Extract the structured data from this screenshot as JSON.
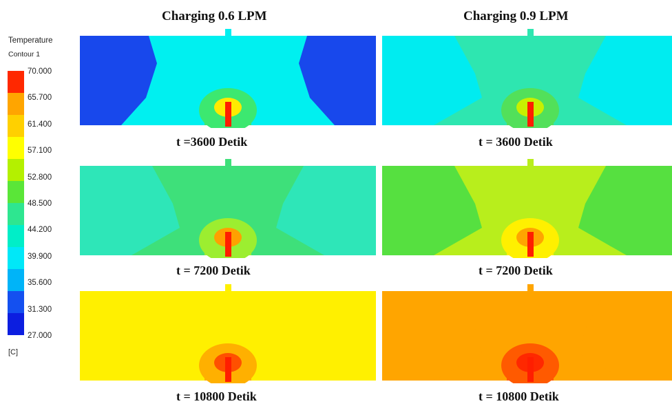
{
  "legend": {
    "title": "Temperature",
    "subtitle": "Contour 1",
    "unit": "[C]",
    "values": [
      "70.000",
      "65.700",
      "61.400",
      "57.100",
      "52.800",
      "48.500",
      "44.200",
      "39.900",
      "35.600",
      "31.300",
      "27.000"
    ],
    "band_colors": [
      "#ff2800",
      "#ffa500",
      "#ffd000",
      "#ffff00",
      "#b4f000",
      "#5ae638",
      "#2ee690",
      "#00eec8",
      "#00e8f8",
      "#00b4f8",
      "#1450f0",
      "#0c1ee0"
    ]
  },
  "columns": [
    {
      "title": "Charging 0.6 LPM"
    },
    {
      "title": "Charging 0.9 LPM"
    }
  ],
  "panels": [
    {
      "col": 0,
      "time": "t =3600 Detik",
      "bg": "#00f0f0",
      "side": "#1848ec",
      "mid": "#00f0f0",
      "inner": "#3ce870",
      "core": "#ffea00"
    },
    {
      "col": 1,
      "time": "t = 3600 Detik",
      "bg": "#00ecf0",
      "side": "#00ecf0",
      "mid": "#2ee6b0",
      "inner": "#52e05a",
      "core": "#c8f000"
    },
    {
      "col": 0,
      "time": "t = 7200 Detik",
      "bg": "#2ee6b8",
      "side": "#2ee6b8",
      "mid": "#3ee07a",
      "inner": "#9cee30",
      "core": "#ffa000"
    },
    {
      "col": 1,
      "time": "t = 7200 Detik",
      "bg": "#56e040",
      "side": "#56e040",
      "mid": "#b8ee1c",
      "inner": "#fff000",
      "core": "#ffa500"
    },
    {
      "col": 0,
      "time": "t = 10800 Detik",
      "bg": "#fff000",
      "side": "#fff000",
      "mid": "#fff000",
      "inner": "#ffb000",
      "core": "#ff5000"
    },
    {
      "col": 1,
      "time": "t = 10800 Detik",
      "bg": "#ffa500",
      "side": "#ffa500",
      "mid": "#ffa500",
      "inner": "#ff5a00",
      "core": "#ff2800"
    }
  ]
}
